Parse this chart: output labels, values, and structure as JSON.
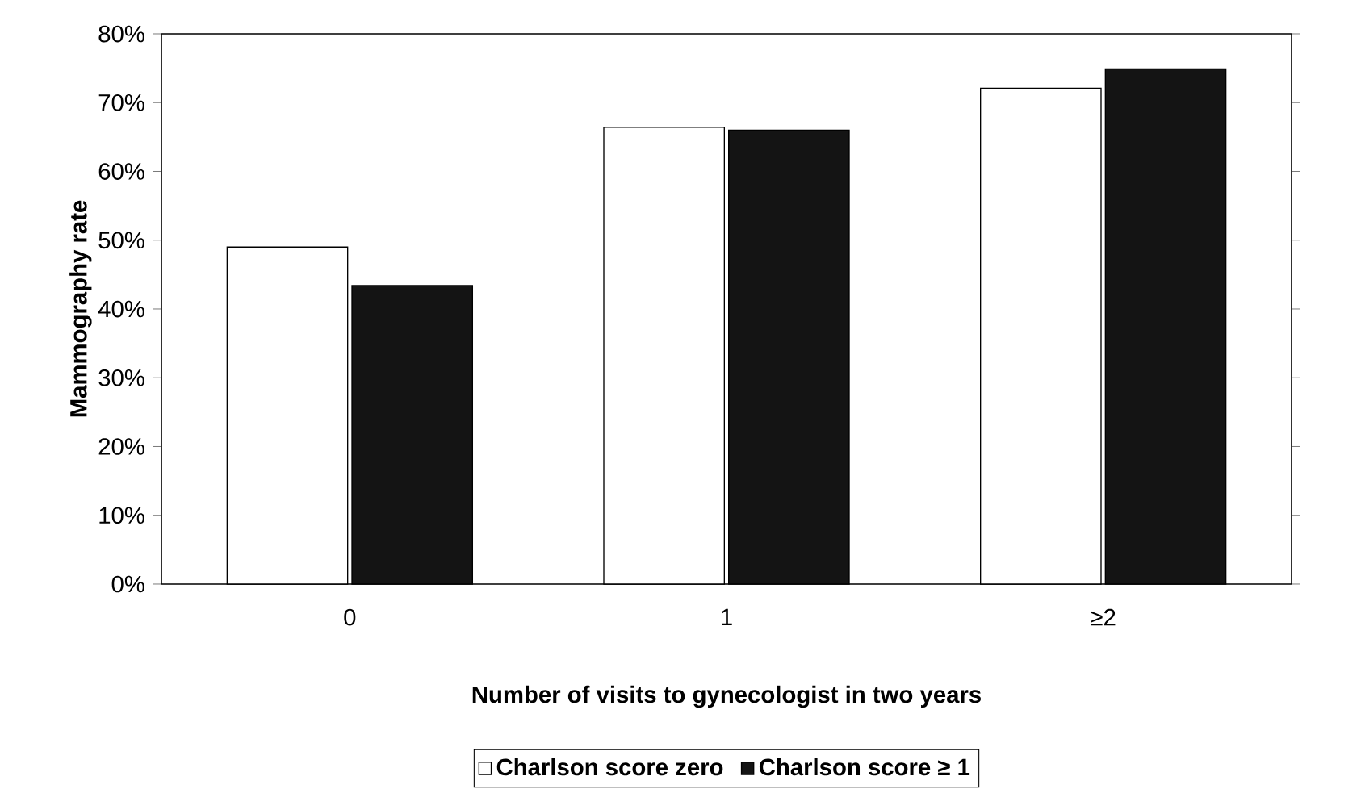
{
  "chart_data": {
    "type": "bar",
    "xlabel": "Number of visits to gynecologist in two years",
    "ylabel": "Mammography rate",
    "categories": [
      "0",
      "1",
      "≥2"
    ],
    "series": [
      {
        "name": "Charlson score zero",
        "color": "#ffffff",
        "values": [
          49.0,
          66.4,
          72.1
        ]
      },
      {
        "name": "Charlson score ≥ 1",
        "color": "#141414",
        "values": [
          43.4,
          66.0,
          74.9
        ]
      }
    ],
    "ylim": [
      0,
      80
    ],
    "yticks": [
      {
        "value": 0,
        "label": "0%"
      },
      {
        "value": 10,
        "label": "10%"
      },
      {
        "value": 20,
        "label": "20%"
      },
      {
        "value": 30,
        "label": "30%"
      },
      {
        "value": 40,
        "label": "40%"
      },
      {
        "value": 50,
        "label": "50%"
      },
      {
        "value": 60,
        "label": "60%"
      },
      {
        "value": 70,
        "label": "70%"
      },
      {
        "value": 80,
        "label": "80%"
      }
    ],
    "grid": false,
    "legend": "bottom"
  }
}
